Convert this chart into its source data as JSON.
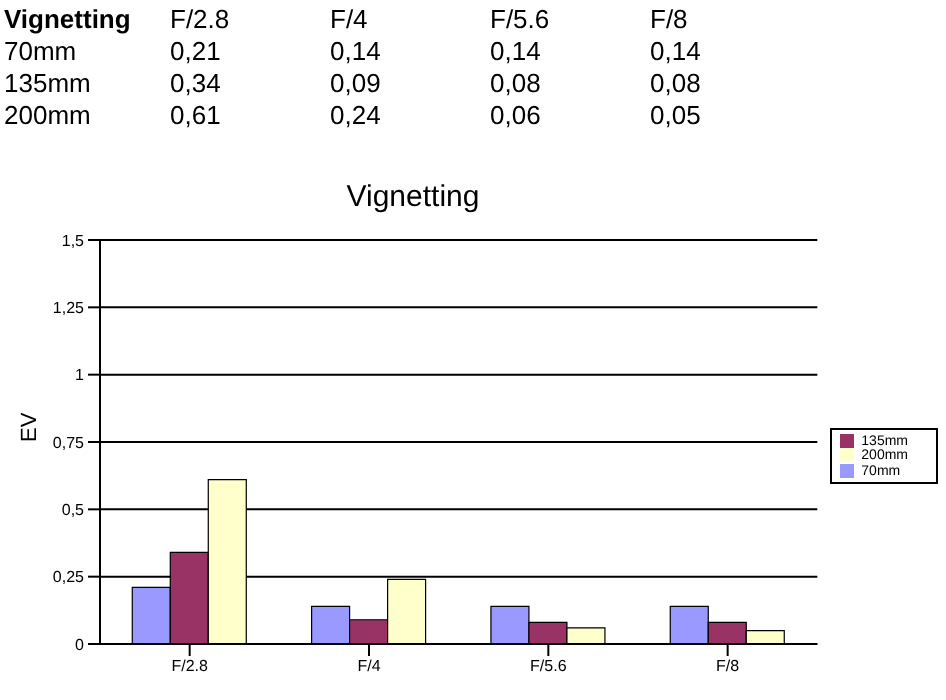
{
  "chart_data": {
    "type": "bar",
    "title": "Vignetting",
    "ylabel": "EV",
    "annotations": [
      "Vignetting"
    ],
    "categories": [
      "F/2.8",
      "F/4",
      "F/5.6",
      "F/8"
    ],
    "series": [
      {
        "name": "70mm",
        "color": "#9999ff",
        "values": [
          0.21,
          0.14,
          0.14,
          0.14
        ],
        "value_labels": [
          "0,21",
          "0,14",
          "0,14",
          "0,14"
        ]
      },
      {
        "name": "135mm",
        "color": "#993366",
        "values": [
          0.34,
          0.09,
          0.08,
          0.08
        ],
        "value_labels": [
          "0,34",
          "0,09",
          "0,08",
          "0,08"
        ]
      },
      {
        "name": "200mm",
        "color": "#ffffcc",
        "values": [
          0.61,
          0.24,
          0.06,
          0.05
        ],
        "value_labels": [
          "0,61",
          "0,24",
          "0,06",
          "0,05"
        ]
      }
    ],
    "ylim": [
      0,
      1.5
    ],
    "yticks": [
      0,
      {
        "value": 0.25,
        "label": "0,25"
      },
      {
        "value": 0.5,
        "label": "0,5"
      },
      {
        "value": 0.75,
        "label": "0,75"
      },
      1,
      {
        "value": 1.25,
        "label": "1,25"
      },
      {
        "value": 1.5,
        "label": "1,5"
      }
    ],
    "grid": "y",
    "legend": "right"
  }
}
